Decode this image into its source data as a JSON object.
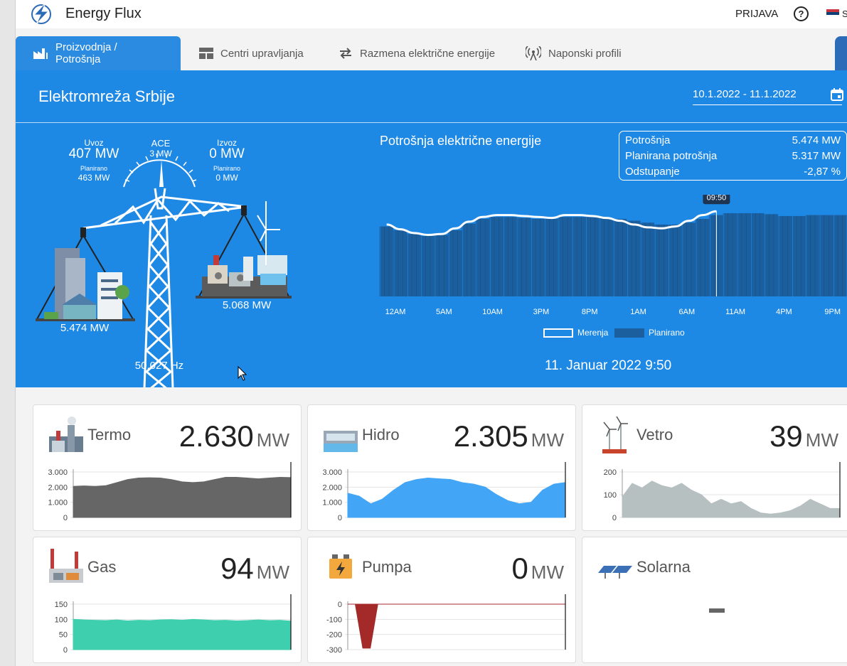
{
  "app": {
    "title": "Energy Flux",
    "login": "PRIJAVA",
    "help": "?",
    "lang": "S"
  },
  "tabs": [
    {
      "label": "Proizvodnja / Potrošnja",
      "icon": "factory-icon"
    },
    {
      "label": "Centri upravljanja",
      "icon": "grid-icon"
    },
    {
      "label": "Razmena električne energije",
      "icon": "swap-icon"
    },
    {
      "label": "Naponski profili",
      "icon": "antenna-icon"
    }
  ],
  "panel": {
    "title": "Elektromreža Srbije",
    "date_range": "10.1.2022 - 11.1.2022",
    "uvoz_label": "Uvoz",
    "uvoz_value": "407 MW",
    "uvoz_planned_label": "Planirano",
    "uvoz_planned_value": "463 MW",
    "ace_label": "ACE",
    "ace_value": "3 MW",
    "izvoz_label": "Izvoz",
    "izvoz_value": "0 MW",
    "izvoz_planned_label": "Planirano",
    "izvoz_planned_value": "0 MW",
    "consumption_mw": "5.474 MW",
    "production_mw": "5.068 MW",
    "frequency": "50.027 Hz",
    "chart_title": "Potrošnja električne energije",
    "stats": [
      {
        "label": "Potrošnja",
        "value": "5.474 MW"
      },
      {
        "label": "Planirana potrošnja",
        "value": "5.317 MW"
      },
      {
        "label": "Odstupanje",
        "value": "-2,87 %"
      }
    ],
    "cursor_label": "09:50",
    "legend_measured": "Merenja",
    "legend_planned": "Planirano",
    "datetime": "11. Januar 2022 9:50"
  },
  "chart_data": {
    "type": "bar",
    "x_ticks": [
      "12AM",
      "5AM",
      "10AM",
      "3PM",
      "8PM",
      "1AM",
      "6AM",
      "11AM",
      "4PM",
      "9PM"
    ],
    "series": [
      {
        "name": "Planirano",
        "type": "bar",
        "color": "#1c5f9e",
        "values": [
          0.74,
          0.7,
          0.66,
          0.64,
          0.65,
          0.7,
          0.77,
          0.82,
          0.84,
          0.84,
          0.83,
          0.82,
          0.82,
          0.84,
          0.84,
          0.84,
          0.83,
          0.82,
          0.8,
          0.78,
          0.76,
          0.76,
          0.78,
          0.82,
          0.86,
          0.88,
          0.88,
          0.88,
          0.87,
          0.85,
          0.85,
          0.86,
          0.86,
          0.86
        ]
      },
      {
        "name": "Merenja",
        "type": "line",
        "color": "#ffffff",
        "values": [
          0.76,
          0.71,
          0.67,
          0.65,
          0.66,
          0.72,
          0.79,
          0.84,
          0.86,
          0.86,
          0.85,
          0.84,
          0.83,
          0.86,
          0.86,
          0.85,
          0.83,
          0.8,
          0.76,
          0.73,
          0.72,
          0.74,
          0.8,
          0.86,
          0.9
        ]
      }
    ]
  },
  "cards": [
    {
      "name": "Termo",
      "value": "2.630",
      "unit": "MW",
      "color": "#666666",
      "yticks": [
        "3.000",
        "2.000",
        "1.000",
        "0"
      ],
      "ymax": 3000,
      "values": [
        2050,
        2080,
        2050,
        2100,
        2300,
        2500,
        2600,
        2620,
        2600,
        2500,
        2350,
        2300,
        2350,
        2500,
        2650,
        2650,
        2600,
        2550,
        2600,
        2650,
        2630
      ]
    },
    {
      "name": "Hidro",
      "value": "2.305",
      "unit": "MW",
      "color": "#42a5f5",
      "yticks": [
        "3.000",
        "2.000",
        "1.000",
        "0"
      ],
      "ymax": 3000,
      "values": [
        1600,
        1400,
        900,
        1200,
        1800,
        2300,
        2500,
        2600,
        2550,
        2500,
        2300,
        2200,
        2000,
        1500,
        1100,
        900,
        1000,
        1800,
        2200,
        2305
      ]
    },
    {
      "name": "Vetro",
      "value": "39",
      "unit": "MW",
      "color": "#b7c0c0",
      "yticks": [
        "200",
        "100",
        "0"
      ],
      "ymax": 200,
      "values": [
        90,
        150,
        130,
        160,
        140,
        130,
        150,
        120,
        100,
        60,
        80,
        60,
        70,
        40,
        20,
        15,
        20,
        30,
        50,
        80,
        60,
        40,
        39
      ]
    },
    {
      "name": "Gas",
      "value": "94",
      "unit": "MW",
      "color": "#3ecfae",
      "yticks": [
        "150",
        "100",
        "50",
        "0"
      ],
      "ymax": 150,
      "values": [
        100,
        98,
        97,
        96,
        98,
        95,
        97,
        96,
        98,
        99,
        97,
        100,
        98,
        96,
        97,
        95,
        96,
        98,
        96,
        97,
        94
      ]
    },
    {
      "name": "Pumpa",
      "value": "0",
      "unit": "MW",
      "color": "#a42a2a",
      "yticks": [
        "0",
        "-100",
        "-200",
        "-300"
      ],
      "ymax": 0,
      "ymin": -300,
      "values": [
        0,
        0,
        -290,
        -290,
        0,
        0,
        0,
        0,
        0,
        0,
        0,
        0,
        0,
        0,
        0,
        0,
        0,
        0,
        0,
        0,
        0,
        0,
        0,
        0,
        0,
        0,
        0,
        0,
        0,
        0
      ]
    },
    {
      "name": "Solarna",
      "value": "",
      "unit": "",
      "placeholder": "-"
    }
  ]
}
